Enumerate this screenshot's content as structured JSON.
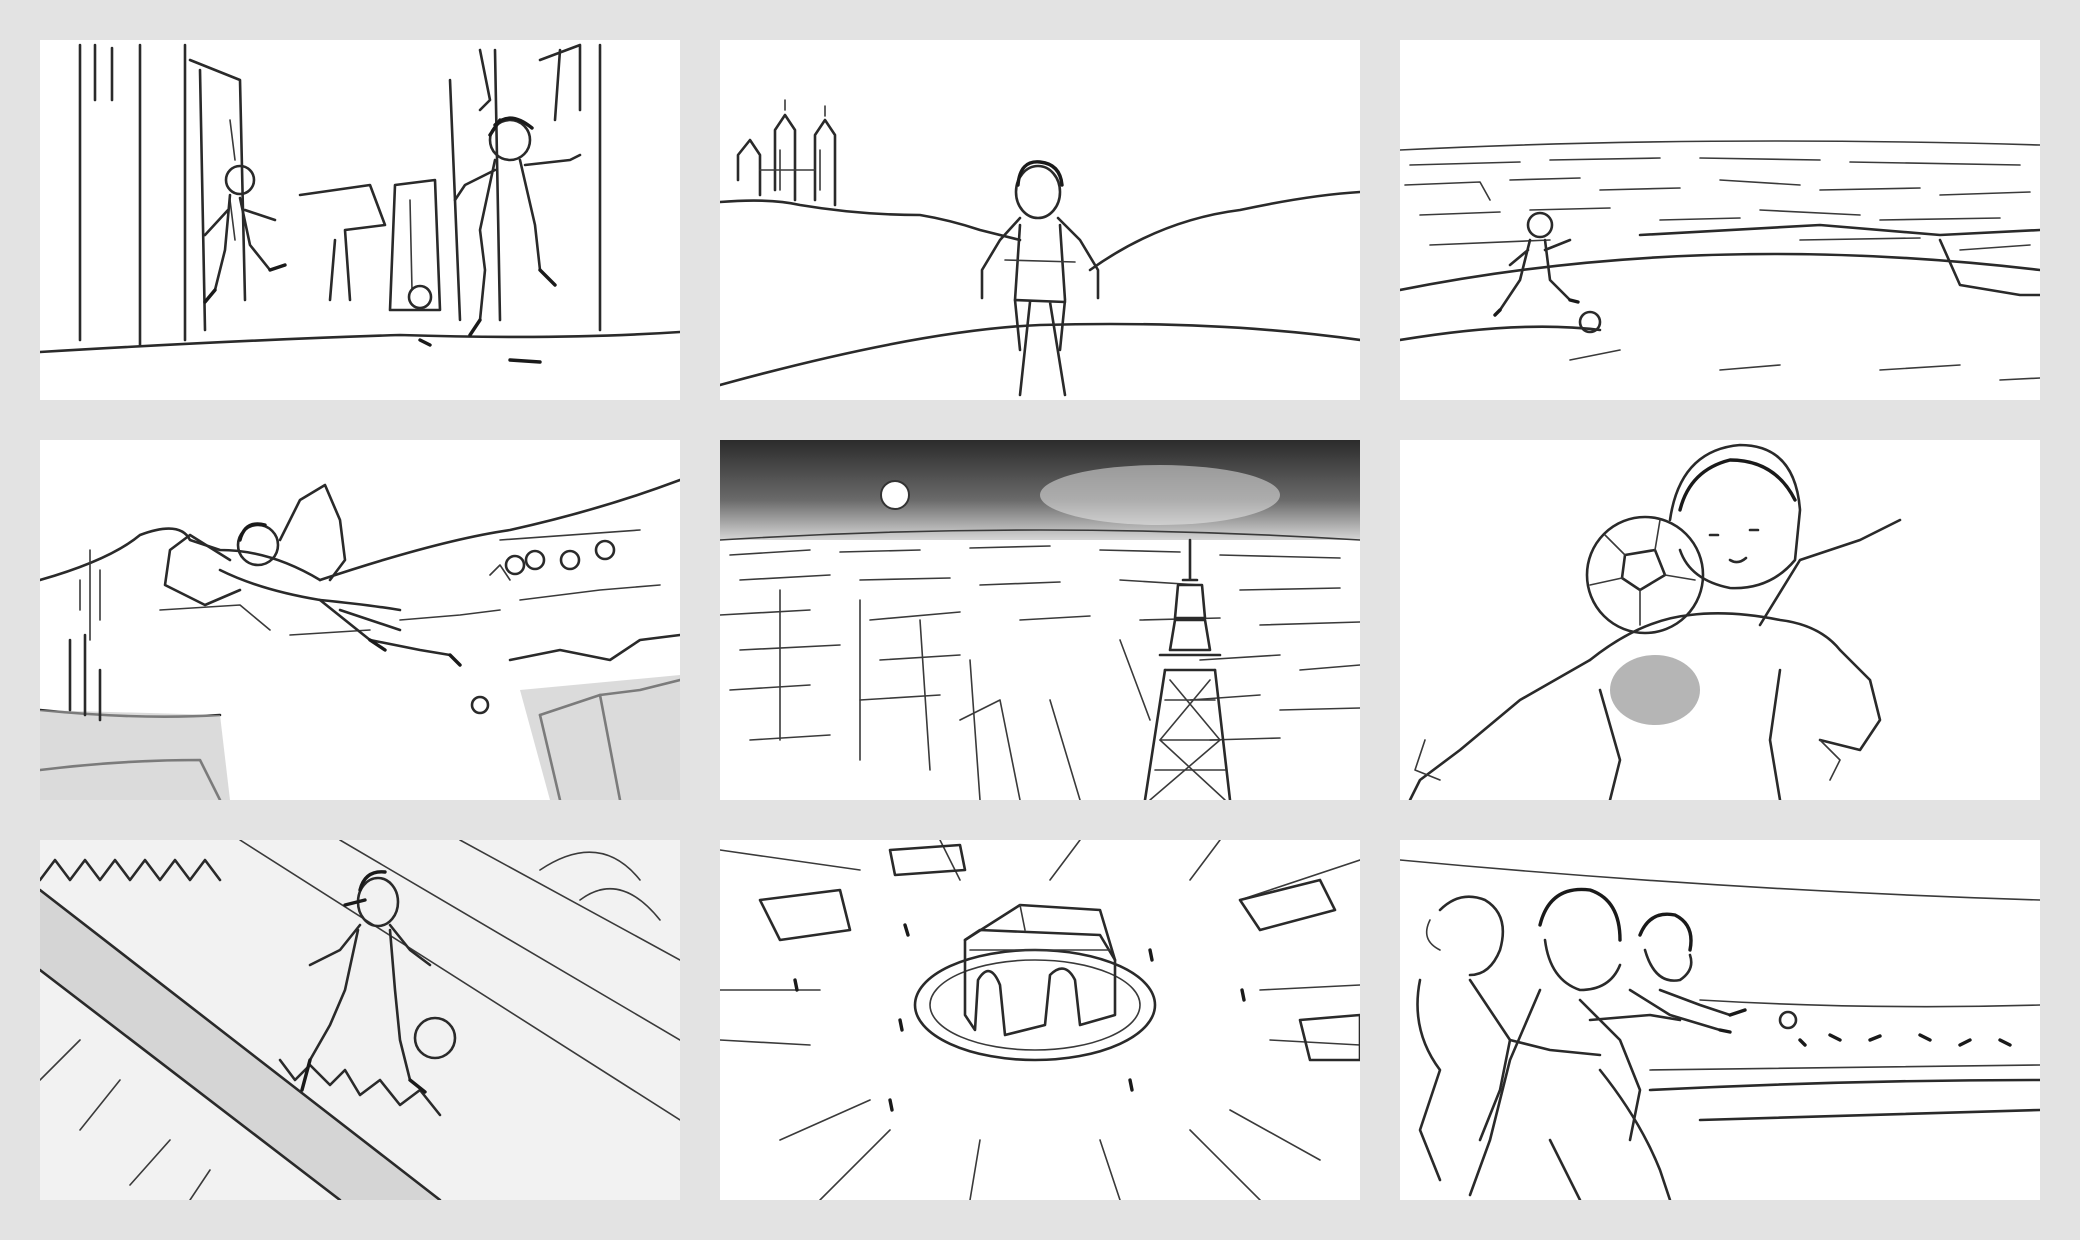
{
  "storyboard": {
    "panel_count": 9,
    "layout": "3x3 grid",
    "background_color": "#e3e3e3",
    "panel_color": "#ffffff",
    "ink_color": "#2a2a2a",
    "style": "pencil sketch"
  }
}
